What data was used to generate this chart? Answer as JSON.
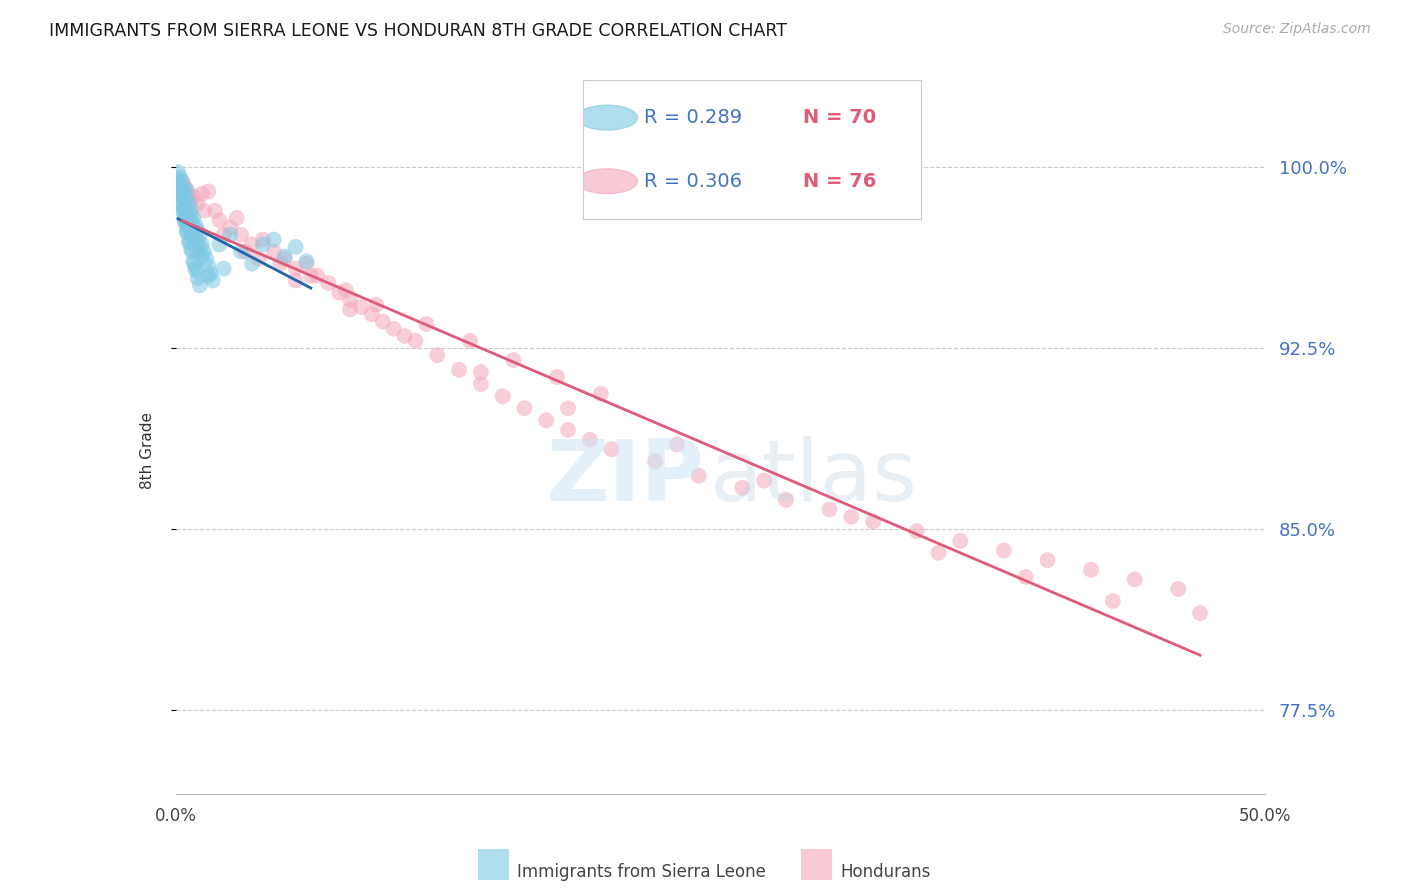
{
  "title": "IMMIGRANTS FROM SIERRA LEONE VS HONDURAN 8TH GRADE CORRELATION CHART",
  "source": "Source: ZipAtlas.com",
  "ylabel": "8th Grade",
  "yticks": [
    77.5,
    85.0,
    92.5,
    100.0
  ],
  "ytick_labels": [
    "77.5%",
    "85.0%",
    "92.5%",
    "100.0%"
  ],
  "xmin": 0.0,
  "xmax": 50.0,
  "ymin": 74.0,
  "ymax": 102.5,
  "blue_color": "#7ec8e3",
  "pink_color": "#f4a7b9",
  "blue_line_color": "#2166ac",
  "pink_line_color": "#e05a7a",
  "blue_scatter_x": [
    0.1,
    0.1,
    0.2,
    0.2,
    0.2,
    0.3,
    0.3,
    0.3,
    0.3,
    0.4,
    0.4,
    0.4,
    0.4,
    0.5,
    0.5,
    0.5,
    0.5,
    0.6,
    0.6,
    0.6,
    0.7,
    0.7,
    0.7,
    0.8,
    0.8,
    0.8,
    0.9,
    0.9,
    1.0,
    1.0,
    1.0,
    1.1,
    1.1,
    1.2,
    1.2,
    1.3,
    1.4,
    1.5,
    1.6,
    1.7,
    0.2,
    0.3,
    0.4,
    0.5,
    0.6,
    0.7,
    0.8,
    0.9,
    1.0,
    1.1,
    2.0,
    2.5,
    3.0,
    3.5,
    4.0,
    4.5,
    5.0,
    5.5,
    6.0,
    2.2,
    0.15,
    0.25,
    0.35,
    0.45,
    0.55,
    0.65,
    0.75,
    0.85,
    0.95,
    1.5
  ],
  "blue_scatter_y": [
    99.8,
    99.5,
    99.6,
    99.2,
    98.8,
    99.4,
    99.0,
    98.5,
    98.2,
    99.1,
    98.7,
    98.3,
    97.9,
    99.0,
    98.6,
    98.0,
    97.5,
    98.5,
    98.1,
    97.6,
    98.2,
    97.8,
    97.2,
    97.9,
    97.5,
    97.0,
    97.6,
    97.1,
    97.4,
    96.9,
    96.5,
    97.2,
    96.7,
    96.8,
    96.3,
    96.5,
    96.2,
    95.9,
    95.6,
    95.3,
    98.9,
    98.4,
    97.8,
    97.3,
    96.9,
    96.6,
    96.1,
    95.8,
    95.4,
    95.1,
    96.8,
    97.2,
    96.5,
    96.0,
    96.8,
    97.0,
    96.3,
    96.7,
    96.1,
    95.8,
    99.3,
    98.8,
    98.2,
    97.7,
    97.3,
    96.9,
    96.5,
    96.0,
    95.7,
    95.5
  ],
  "pink_scatter_x": [
    0.3,
    0.5,
    0.8,
    1.0,
    1.2,
    1.5,
    0.4,
    0.7,
    1.8,
    2.0,
    2.5,
    3.0,
    2.8,
    3.5,
    4.0,
    4.5,
    5.0,
    5.5,
    6.0,
    6.5,
    7.0,
    7.5,
    8.0,
    8.5,
    9.0,
    9.5,
    10.0,
    11.0,
    12.0,
    13.0,
    14.0,
    15.0,
    16.0,
    17.0,
    18.0,
    19.0,
    20.0,
    22.0,
    24.0,
    26.0,
    28.0,
    30.0,
    32.0,
    34.0,
    36.0,
    38.0,
    40.0,
    42.0,
    44.0,
    46.0,
    3.2,
    4.8,
    6.2,
    7.8,
    9.2,
    11.5,
    13.5,
    15.5,
    17.5,
    19.5,
    0.6,
    1.3,
    2.2,
    3.8,
    5.5,
    8.0,
    10.5,
    14.0,
    18.0,
    23.0,
    27.0,
    31.0,
    35.0,
    39.0,
    43.0,
    47.0
  ],
  "pink_scatter_y": [
    99.4,
    99.1,
    98.8,
    98.5,
    98.9,
    99.0,
    99.2,
    98.6,
    98.2,
    97.8,
    97.5,
    97.2,
    97.9,
    96.8,
    97.0,
    96.5,
    96.2,
    95.8,
    96.0,
    95.5,
    95.2,
    94.8,
    94.5,
    94.2,
    93.9,
    93.6,
    93.3,
    92.8,
    92.2,
    91.6,
    91.0,
    90.5,
    90.0,
    89.5,
    89.1,
    88.7,
    88.3,
    87.8,
    87.2,
    86.7,
    86.2,
    85.8,
    85.3,
    84.9,
    84.5,
    84.1,
    83.7,
    83.3,
    82.9,
    82.5,
    96.5,
    96.0,
    95.5,
    94.9,
    94.3,
    93.5,
    92.8,
    92.0,
    91.3,
    90.6,
    98.8,
    98.2,
    97.2,
    96.2,
    95.3,
    94.1,
    93.0,
    91.5,
    90.0,
    88.5,
    87.0,
    85.5,
    84.0,
    83.0,
    82.0,
    81.5
  ],
  "blue_line_start_x": 0.1,
  "blue_line_end_x": 6.2,
  "pink_line_start_x": 0.3,
  "pink_line_end_x": 47.0
}
